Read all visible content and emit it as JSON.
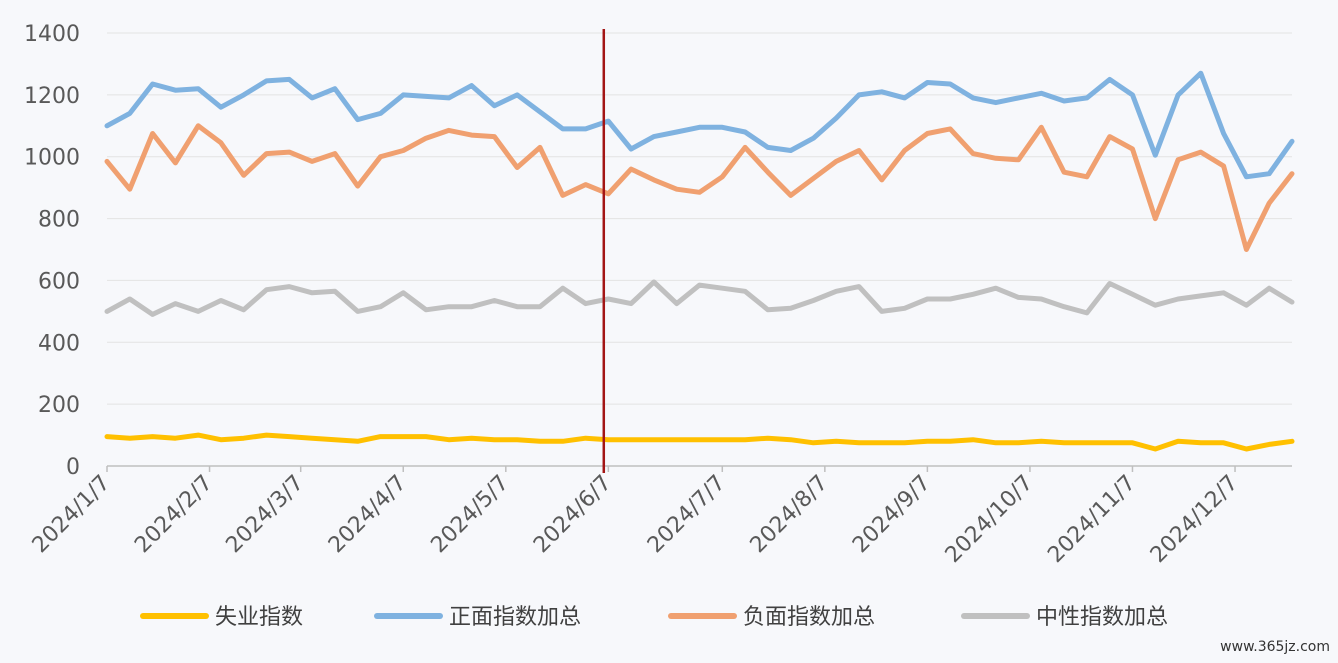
{
  "chart_data": {
    "type": "line",
    "title": "",
    "xlabel": "",
    "ylabel": "",
    "ylim": [
      0,
      1400
    ],
    "yticks": [
      0,
      200,
      400,
      600,
      800,
      1000,
      1200,
      1400
    ],
    "grid": true,
    "legend_position": "bottom",
    "x_tick_labels": [
      "2024/1/7",
      "2024/2/7",
      "2024/3/7",
      "2024/4/7",
      "2024/5/7",
      "2024/6/7",
      "2024/7/7",
      "2024/8/7",
      "2024/9/7",
      "2024/10/7",
      "2024/11/7",
      "2024/12/7"
    ],
    "x_tick_indices": [
      0,
      4.5,
      8.5,
      13,
      17.5,
      22,
      27,
      31.5,
      36,
      40.5,
      45,
      49.5
    ],
    "marker_line": {
      "at_index": 21.8,
      "color": "#a31515"
    },
    "series": [
      {
        "name": "失业指数",
        "color": "#ffc000",
        "values": [
          95,
          90,
          95,
          90,
          100,
          85,
          90,
          100,
          95,
          90,
          85,
          80,
          95,
          95,
          95,
          85,
          90,
          85,
          85,
          80,
          80,
          90,
          85,
          85,
          85,
          85,
          85,
          85,
          85,
          90,
          85,
          75,
          80,
          75,
          75,
          75,
          80,
          80,
          85,
          75,
          75,
          80,
          75,
          75,
          75,
          75,
          55,
          80,
          75,
          75,
          55,
          70,
          80
        ]
      },
      {
        "name": "正面指数加总",
        "color": "#7fb2e0",
        "values": [
          1100,
          1140,
          1235,
          1215,
          1220,
          1160,
          1200,
          1245,
          1250,
          1190,
          1220,
          1120,
          1140,
          1200,
          1195,
          1190,
          1230,
          1165,
          1200,
          1145,
          1090,
          1090,
          1115,
          1025,
          1065,
          1080,
          1095,
          1095,
          1080,
          1030,
          1020,
          1060,
          1125,
          1200,
          1210,
          1190,
          1240,
          1235,
          1190,
          1175,
          1190,
          1205,
          1180,
          1190,
          1250,
          1200,
          1005,
          1200,
          1270,
          1075,
          935,
          945,
          1050
        ]
      },
      {
        "name": "负面指数加总",
        "color": "#f0a070",
        "values": [
          985,
          895,
          1075,
          980,
          1100,
          1045,
          940,
          1010,
          1015,
          985,
          1010,
          905,
          1000,
          1020,
          1060,
          1085,
          1070,
          1065,
          965,
          1030,
          875,
          910,
          880,
          960,
          925,
          895,
          885,
          935,
          1030,
          950,
          875,
          930,
          985,
          1020,
          925,
          1020,
          1075,
          1090,
          1010,
          995,
          990,
          1095,
          950,
          935,
          1065,
          1025,
          800,
          990,
          1015,
          970,
          700,
          850,
          945
        ]
      },
      {
        "name": "中性指数加总",
        "color": "#c0c0c0",
        "values": [
          500,
          540,
          490,
          525,
          500,
          535,
          505,
          570,
          580,
          560,
          565,
          500,
          515,
          560,
          505,
          515,
          515,
          535,
          515,
          515,
          575,
          525,
          540,
          525,
          595,
          525,
          585,
          575,
          565,
          505,
          510,
          535,
          565,
          580,
          500,
          510,
          540,
          540,
          555,
          575,
          545,
          540,
          515,
          495,
          590,
          555,
          520,
          540,
          550,
          560,
          520,
          575,
          530
        ]
      }
    ]
  },
  "watermark": "www.365jz.com"
}
